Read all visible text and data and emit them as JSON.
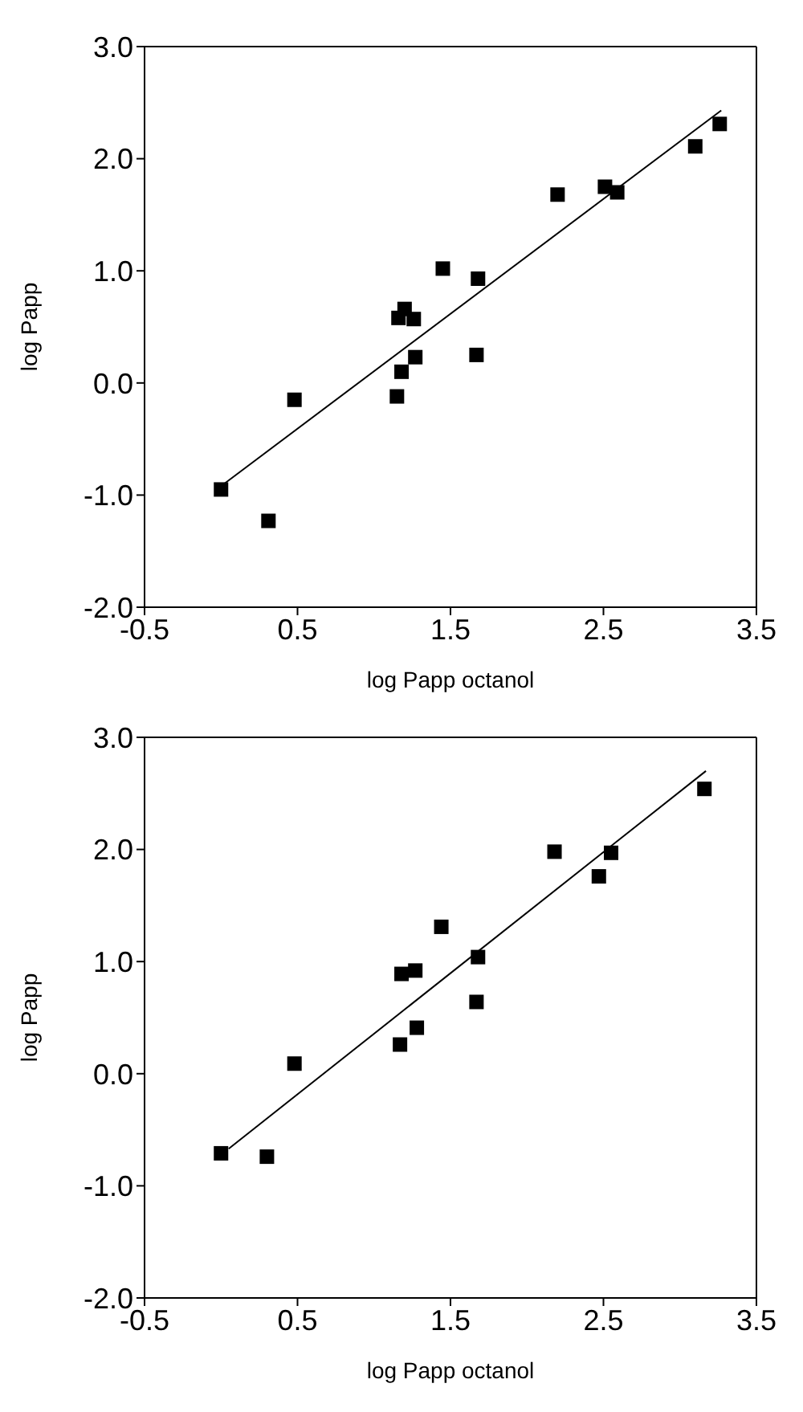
{
  "chart_data": [
    {
      "type": "scatter",
      "xlabel": "log Papp octanol",
      "ylabel": "log Papp",
      "xlim": [
        -0.5,
        3.5
      ],
      "ylim": [
        -2,
        3
      ],
      "xticks": [
        {
          "value": -0.5,
          "label": "-0.5"
        },
        {
          "value": 0.5,
          "label": "0.5"
        },
        {
          "value": 1.5,
          "label": "1.5"
        },
        {
          "value": 2.5,
          "label": "2.5"
        },
        {
          "value": 3.5,
          "label": "3.5"
        }
      ],
      "yticks": [
        {
          "value": -2,
          "label": "-2.0"
        },
        {
          "value": -1,
          "label": "-1.0"
        },
        {
          "value": 0,
          "label": "0.0"
        },
        {
          "value": 1,
          "label": "1.0"
        },
        {
          "value": 2,
          "label": "2.0"
        },
        {
          "value": 3,
          "label": "3.0"
        }
      ],
      "series": [
        {
          "marker": "square",
          "color": "#000000",
          "x": [
            0.0,
            0.31,
            0.48,
            1.15,
            1.18,
            1.16,
            1.2,
            1.26,
            1.27,
            1.45,
            1.68,
            1.67,
            2.2,
            2.51,
            2.59,
            3.1,
            3.26
          ],
          "values": [
            -0.95,
            -1.23,
            -0.15,
            -0.12,
            0.1,
            0.58,
            0.66,
            0.57,
            0.23,
            1.02,
            0.93,
            0.25,
            1.68,
            1.75,
            1.7,
            2.11,
            2.31
          ]
        },
        {
          "type": "line",
          "color": "#000000",
          "x": [
            0.0,
            3.27
          ],
          "values": [
            -0.92,
            2.43
          ]
        }
      ]
    },
    {
      "type": "scatter",
      "xlabel": "log Papp octanol",
      "ylabel": "log Papp",
      "xlim": [
        -0.5,
        3.5
      ],
      "ylim": [
        -2,
        3
      ],
      "xticks": [
        {
          "value": -0.5,
          "label": "-0.5"
        },
        {
          "value": 0.5,
          "label": "0.5"
        },
        {
          "value": 1.5,
          "label": "1.5"
        },
        {
          "value": 2.5,
          "label": "2.5"
        },
        {
          "value": 3.5,
          "label": "3.5"
        }
      ],
      "yticks": [
        {
          "value": -2,
          "label": "-2.0"
        },
        {
          "value": -1,
          "label": "-1.0"
        },
        {
          "value": 0,
          "label": "0.0"
        },
        {
          "value": 1,
          "label": "1.0"
        },
        {
          "value": 2,
          "label": "2.0"
        },
        {
          "value": 3,
          "label": "3.0"
        }
      ],
      "series": [
        {
          "marker": "square",
          "color": "#000000",
          "x": [
            0.0,
            0.3,
            0.48,
            1.17,
            1.18,
            1.27,
            1.28,
            1.44,
            1.67,
            1.68,
            2.18,
            2.47,
            2.55,
            3.16
          ],
          "values": [
            -0.71,
            -0.74,
            0.09,
            0.26,
            0.89,
            0.92,
            0.41,
            1.31,
            0.64,
            1.04,
            1.98,
            1.76,
            1.97,
            2.54
          ]
        },
        {
          "type": "line",
          "color": "#000000",
          "x": [
            0.05,
            3.17
          ],
          "values": [
            -0.67,
            2.7
          ]
        }
      ]
    }
  ]
}
